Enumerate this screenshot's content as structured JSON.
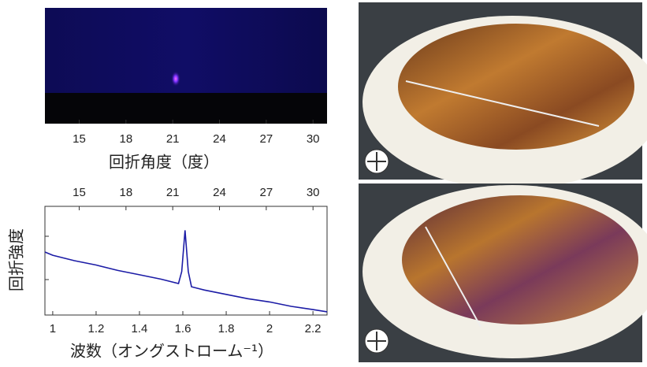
{
  "chart_data": [
    {
      "type": "image",
      "xlabel": "回折角度（度）",
      "xlim": [
        12.8,
        30.9
      ],
      "xticks": [
        15,
        18,
        21,
        24,
        27,
        30
      ]
    },
    {
      "type": "line",
      "xlabel": "波数（オングストローム⁻¹）",
      "ylabel": "回折強度",
      "color": "#1c1ca6",
      "x": [
        0.964,
        1.0,
        1.1,
        1.2,
        1.3,
        1.4,
        1.5,
        1.58,
        1.595,
        1.61,
        1.625,
        1.64,
        1.7,
        1.8,
        1.9,
        2.0,
        2.1,
        2.2,
        2.265
      ],
      "values": [
        58,
        55,
        50,
        46,
        41,
        37,
        33,
        29,
        40,
        78,
        40,
        26,
        23,
        19,
        15,
        12,
        8,
        5,
        3
      ],
      "xlim": [
        0.964,
        2.265
      ],
      "xticks": [
        1,
        1.2,
        1.4,
        1.6,
        1.8,
        2,
        2.2
      ],
      "ylim": [
        0,
        100
      ],
      "x2lim": [
        12.8,
        30.9
      ],
      "x2ticks": [
        15,
        18,
        21,
        24,
        27,
        30
      ]
    }
  ]
}
